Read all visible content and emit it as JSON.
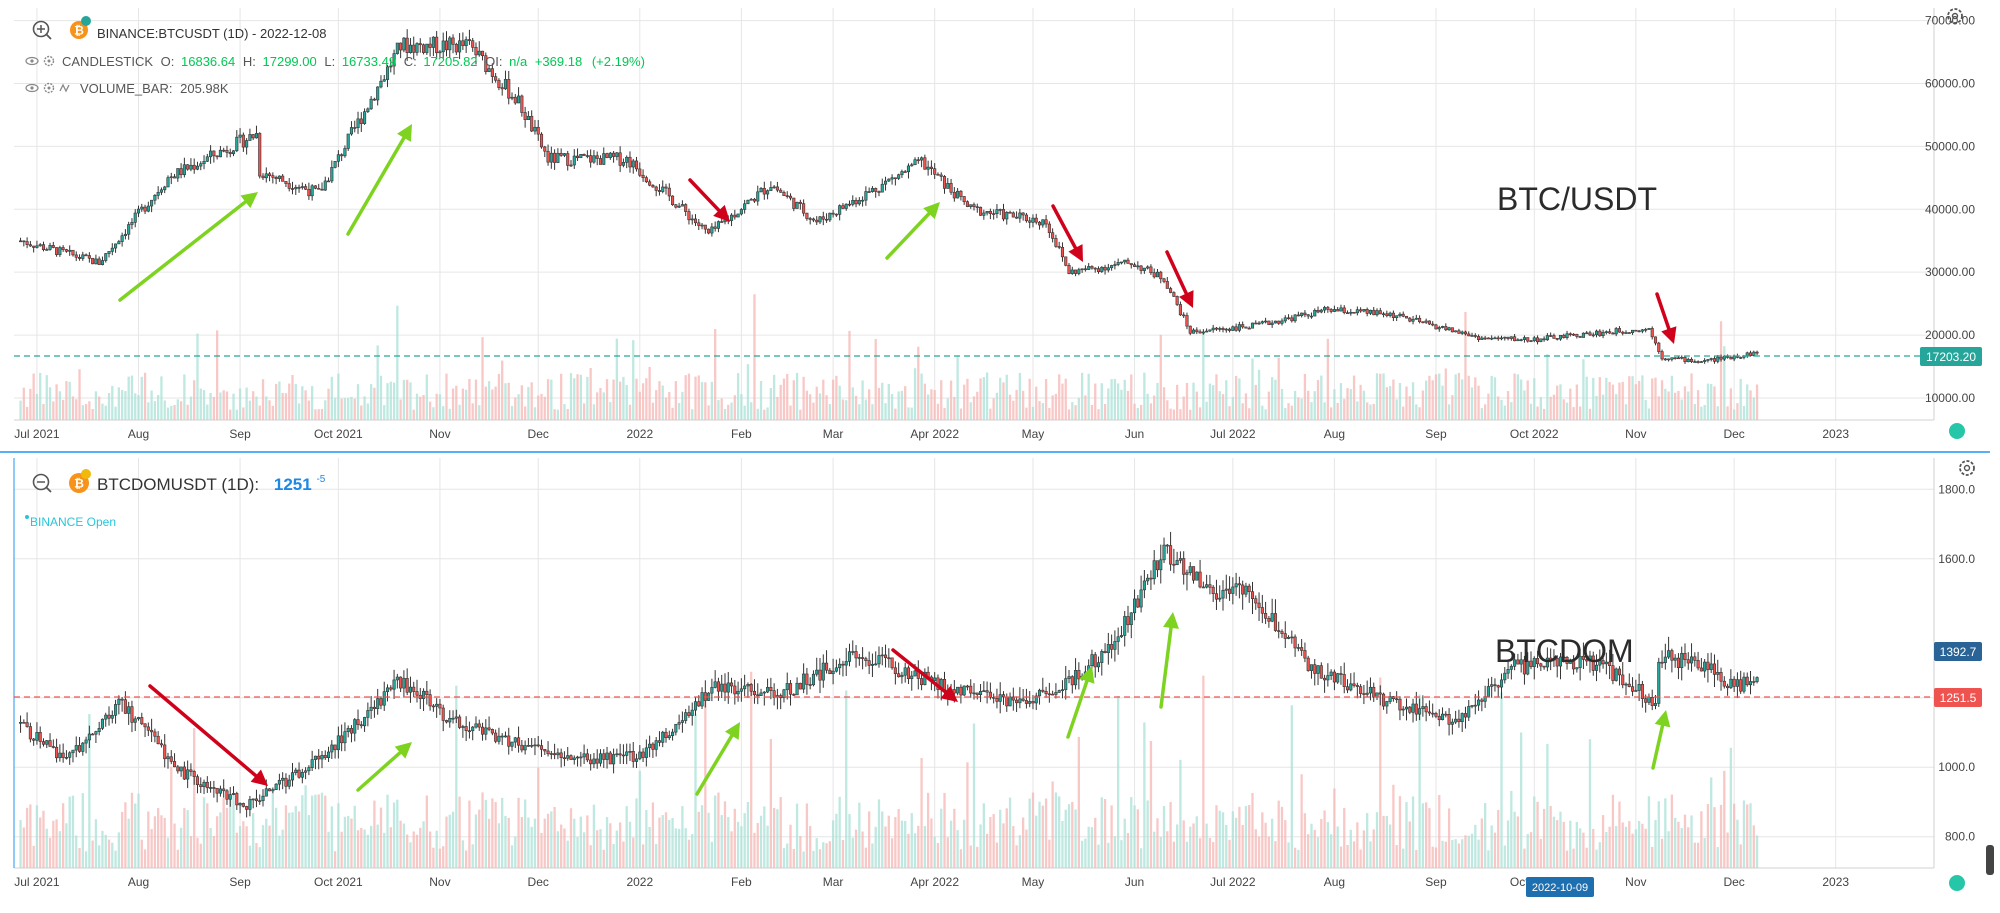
{
  "top_panel": {
    "symbol": "BINANCE:BTCUSDT (1D) - 2022-12-08",
    "candle_label": "CANDLESTICK",
    "o_label": "O:",
    "o": "16836.64",
    "h_label": "H:",
    "h": "17299.00",
    "l_label": "L:",
    "l": "16733.49",
    "c_label": "C:",
    "c": "17205.82",
    "oi_label": "OI:",
    "oi": "n/a",
    "change": "+369.18",
    "change_pct": "(+2.19%)",
    "volume_label": "VOLUME_BAR:",
    "volume": "205.98K",
    "big_label": "BTC/USDT",
    "last_price_tag": "17203.20"
  },
  "bottom_panel": {
    "symbol": "BTCDOMUSDT (1D):",
    "value": "1251",
    "value_sup": "-5",
    "status": "BINANCE Open",
    "big_label": "BTCDOM",
    "price_tag_1": "1392.7",
    "price_tag_2": "1251.5",
    "cursor_date": "2022-10-09"
  },
  "colors": {
    "up": "#26a69a",
    "down": "#ef5350",
    "green_arrow": "#7ed321",
    "red_arrow": "#d0021b",
    "btc_tag": "#26a69a",
    "dom_tag_1": "#2a6496",
    "dom_tag_2": "#ef5350",
    "accent_text": "#00c853"
  },
  "chart_data": [
    {
      "type": "line",
      "title": "BINANCE:BTCUSDT (1D) - 2022-12-08",
      "ylabel": "",
      "x_ticks": [
        "Jul 2021",
        "Aug",
        "Sep",
        "Oct 2021",
        "Nov",
        "Dec",
        "2022",
        "Feb",
        "Mar",
        "Apr 2022",
        "May",
        "Jun",
        "Jul 2022",
        "Aug",
        "Sep",
        "Oct 2022",
        "Nov",
        "Dec",
        "2023"
      ],
      "y_ticks": [
        "70000.00",
        "60000.00",
        "50000.00",
        "40000.00",
        "30000.00",
        "20000.00",
        "10000.00"
      ],
      "ylim": [
        6500,
        72000
      ],
      "x": [
        "2021-06-26",
        "2021-07-20",
        "2021-08-10",
        "2021-09-06",
        "2021-09-07",
        "2021-09-25",
        "2021-10-20",
        "2021-11-10",
        "2021-11-25",
        "2021-12-04",
        "2021-12-28",
        "2022-01-10",
        "2022-01-22",
        "2022-02-10",
        "2022-02-24",
        "2022-03-28",
        "2022-04-12",
        "2022-05-05",
        "2022-05-12",
        "2022-05-31",
        "2022-06-10",
        "2022-06-18",
        "2022-07-08",
        "2022-07-30",
        "2022-08-18",
        "2022-09-15",
        "2022-10-01",
        "2022-10-28",
        "2022-11-05",
        "2022-11-09",
        "2022-11-21",
        "2022-12-08"
      ],
      "series": [
        {
          "values": [
            35000,
            31500,
            45000,
            52000,
            46000,
            42500,
            66000,
            66000,
            57000,
            48000,
            48000,
            42000,
            36000,
            44000,
            38000,
            47500,
            40000,
            38000,
            30000,
            31500,
            29000,
            20500,
            21500,
            24000,
            23300,
            19500,
            19300,
            20700,
            21000,
            16500,
            15800,
            17200
          ]
        }
      ],
      "annotations": [
        "BTC/USDT",
        "17203.20"
      ]
    },
    {
      "type": "line",
      "title": "BTCDOMUSDT (1D):",
      "ylabel": "",
      "x_ticks": [
        "Jul 2021",
        "Aug",
        "Sep",
        "Oct 2021",
        "Nov",
        "Dec",
        "2022",
        "Feb",
        "Mar",
        "Apr 2022",
        "May",
        "Jun",
        "Jul 2022",
        "Aug",
        "Sep",
        "Oct 2022",
        "Nov",
        "Dec",
        "2023"
      ],
      "y_ticks": [
        "1800.0",
        "1600.0",
        "1200.0",
        "1000.0",
        "800.0"
      ],
      "ylim": [
        710,
        1890
      ],
      "x": [
        "2021-06-26",
        "2021-07-10",
        "2021-07-26",
        "2021-08-15",
        "2021-09-03",
        "2021-09-25",
        "2021-10-20",
        "2021-11-05",
        "2021-12-10",
        "2022-01-01",
        "2022-01-24",
        "2022-02-15",
        "2022-03-08",
        "2022-04-01",
        "2022-04-25",
        "2022-05-10",
        "2022-05-25",
        "2022-06-10",
        "2022-06-25",
        "2022-07-05",
        "2022-07-25",
        "2022-08-15",
        "2022-09-07",
        "2022-09-25",
        "2022-10-20",
        "2022-11-07",
        "2022-11-08",
        "2022-11-20",
        "2022-12-01",
        "2022-12-08"
      ],
      "series": [
        {
          "values": [
            1120,
            1020,
            1190,
            980,
            890,
            1020,
            1250,
            1130,
            1020,
            1030,
            1230,
            1220,
            1330,
            1240,
            1180,
            1230,
            1350,
            1620,
            1500,
            1520,
            1280,
            1200,
            1130,
            1290,
            1300,
            1190,
            1320,
            1300,
            1230,
            1251
          ]
        }
      ],
      "annotations": [
        "BTCDOM",
        "1392.7",
        "1251.5",
        "2022-10-09"
      ]
    }
  ]
}
